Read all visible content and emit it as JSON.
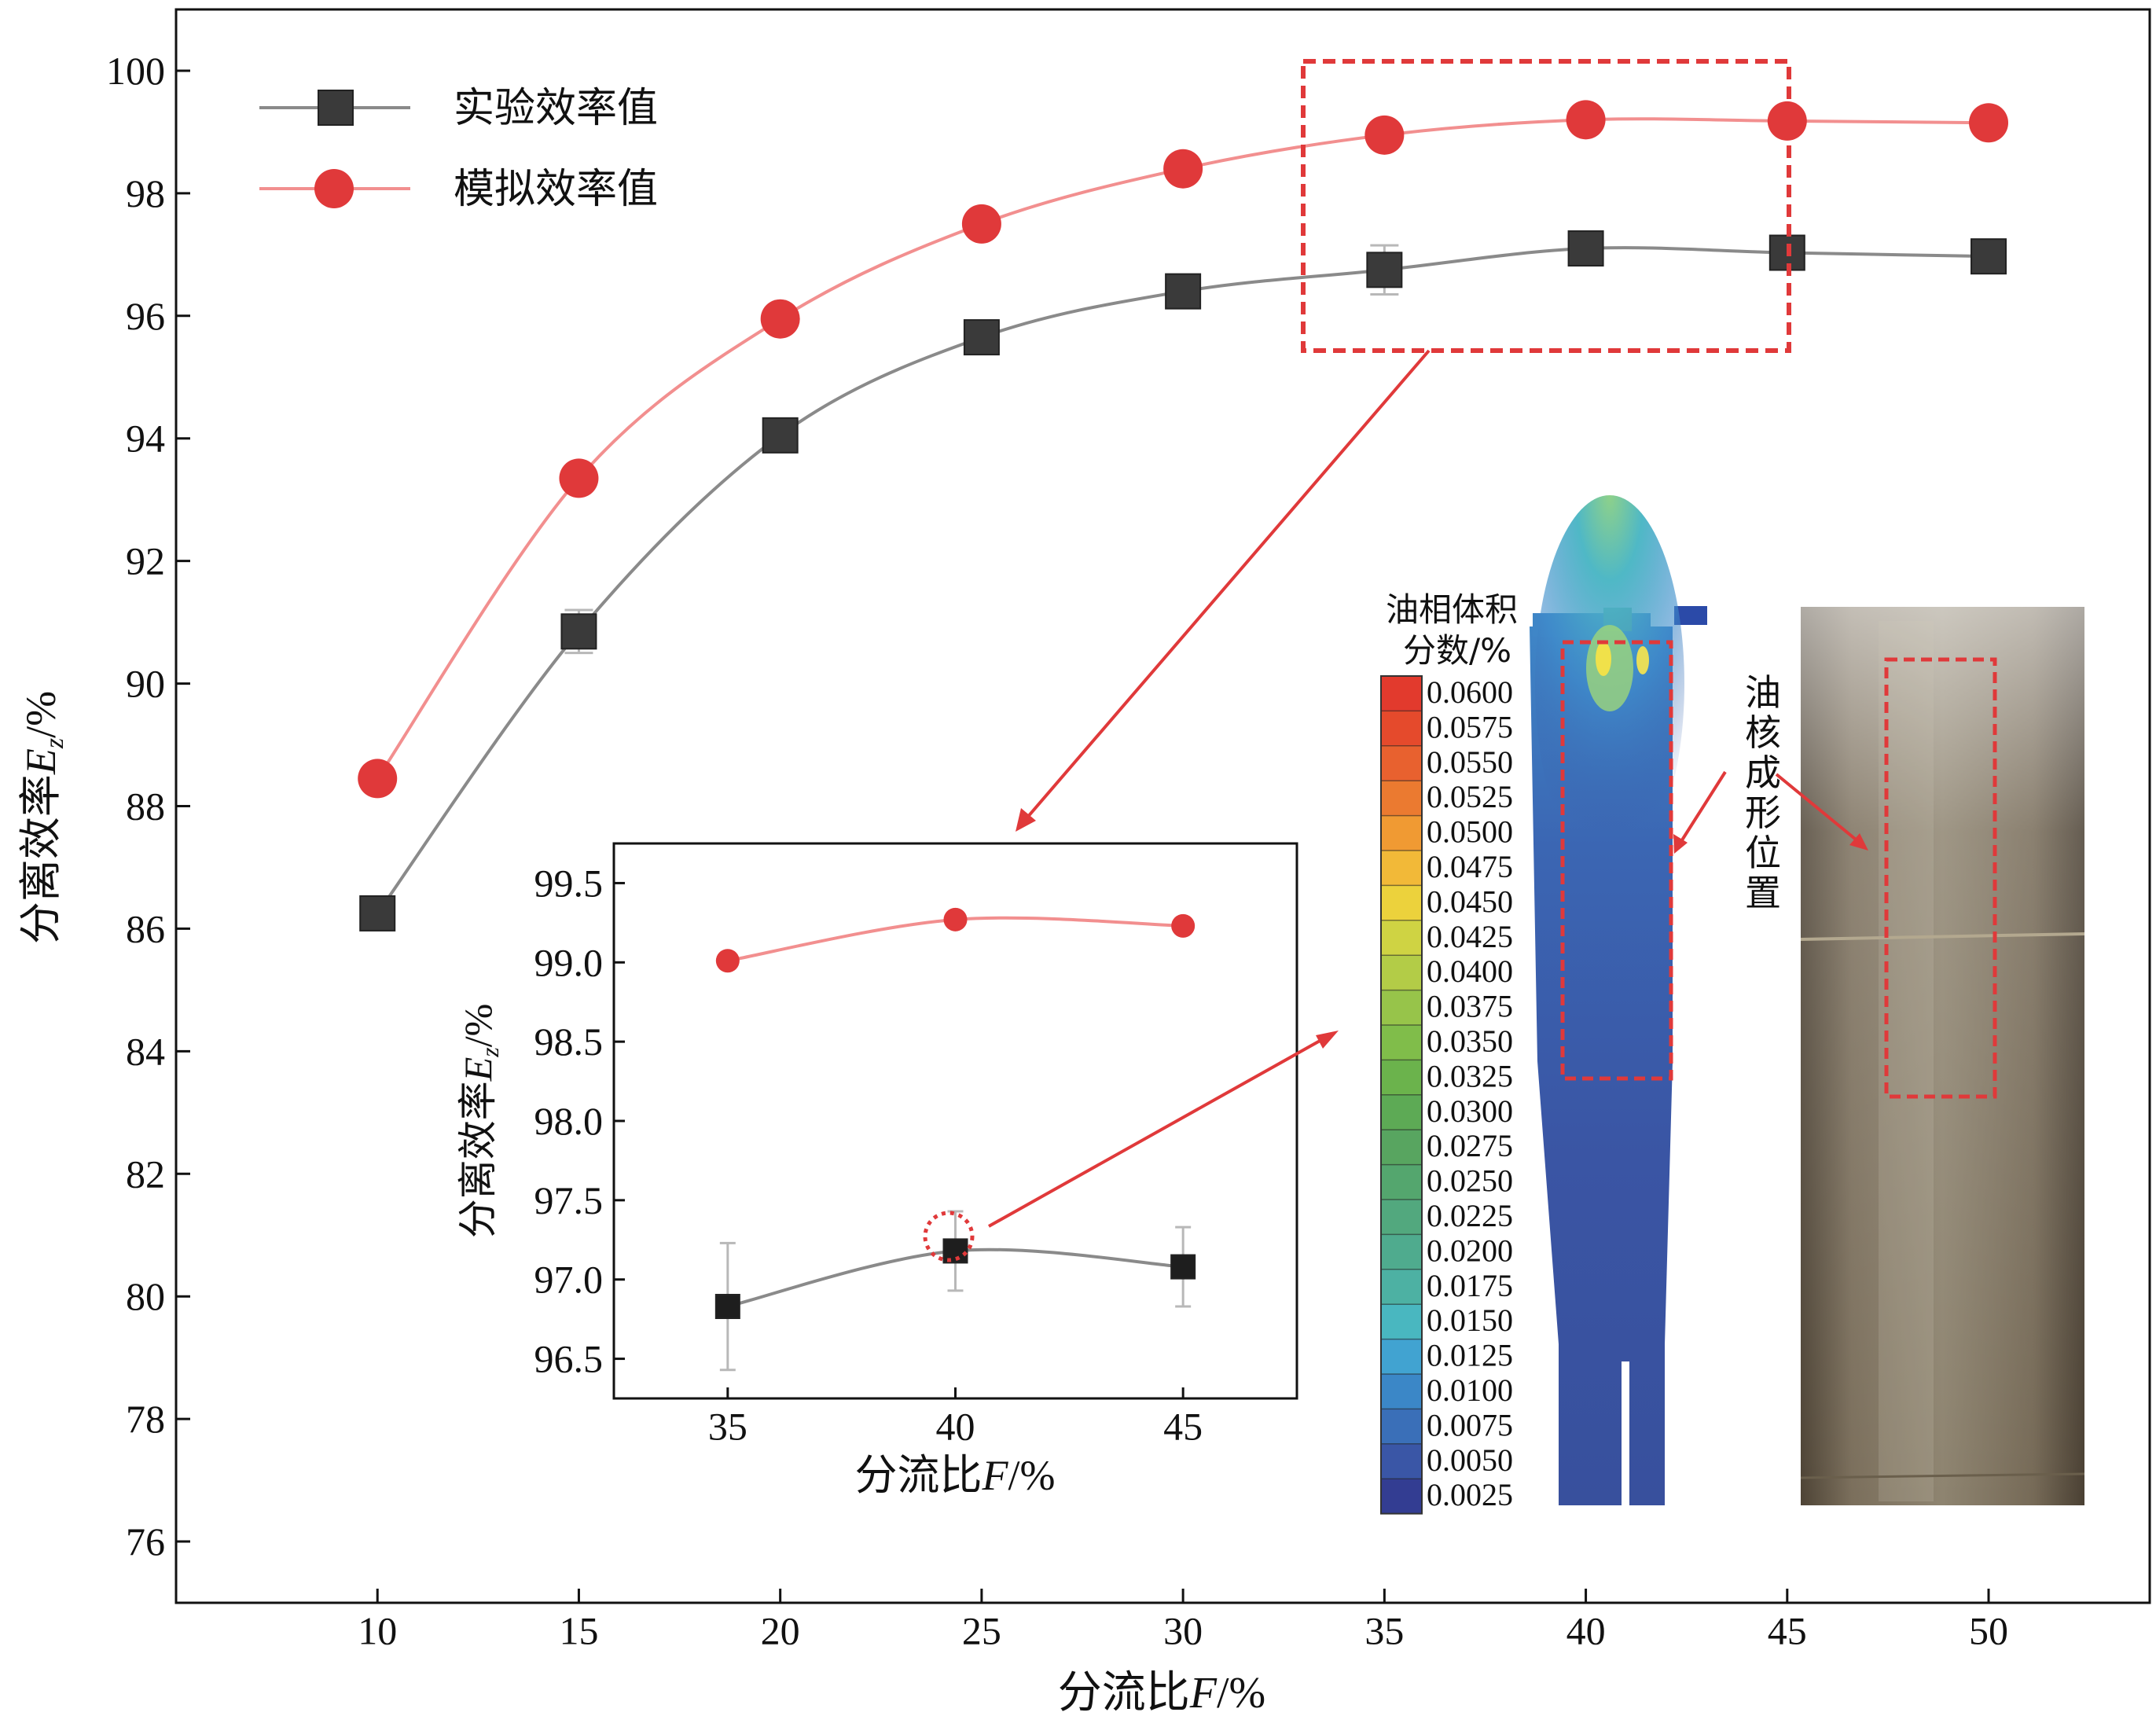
{
  "main_chart": {
    "ylabel_text": "分离效率",
    "ylabel_sym": "E",
    "ylabel_sub": "z",
    "ylabel_unit": "/%",
    "xlabel_text": "分流比",
    "xlabel_sym": "F",
    "xlabel_unit": "/%",
    "legend": [
      {
        "label": "实验效率值",
        "color": "#4a4a4a",
        "marker": "square"
      },
      {
        "label": "模拟效率值",
        "color": "#e0393a",
        "marker": "circle"
      }
    ]
  },
  "inset_chart": {
    "ylabel_text": "分离效率",
    "ylabel_sym": "E",
    "ylabel_sub": "z",
    "ylabel_unit": "/%",
    "xlabel_text": "分流比",
    "xlabel_sym": "F",
    "xlabel_unit": "/%"
  },
  "colorbar": {
    "title_line1": "油相体积",
    "title_line2": "分数/%",
    "levels": [
      "0.0600",
      "0.0575",
      "0.0550",
      "0.0525",
      "0.0500",
      "0.0475",
      "0.0450",
      "0.0425",
      "0.0400",
      "0.0375",
      "0.0350",
      "0.0325",
      "0.0300",
      "0.0275",
      "0.0250",
      "0.0225",
      "0.0200",
      "0.0175",
      "0.0150",
      "0.0125",
      "0.0100",
      "0.0075",
      "0.0050",
      "0.0025"
    ],
    "colors": [
      "#e23a2d",
      "#e54a2c",
      "#e8612f",
      "#eb7a30",
      "#f09a33",
      "#f2b938",
      "#ecd23c",
      "#cfd343",
      "#b3cc47",
      "#97c44a",
      "#80bd4a",
      "#6bb34c",
      "#5daa55",
      "#58a560",
      "#54a66e",
      "#52a87e",
      "#4fab8e",
      "#4db1a3",
      "#49b7c0",
      "#41a3d1",
      "#3b87c7",
      "#3a6fb8",
      "#3a56a6",
      "#333d92"
    ]
  },
  "annotation": {
    "oil_core_label": [
      "油",
      "核",
      "成",
      "形",
      "位",
      "置"
    ]
  },
  "chart_data": [
    {
      "type": "line",
      "x": [
        10,
        15,
        20,
        25,
        30,
        35,
        40,
        45,
        50
      ],
      "xticks": [
        10,
        15,
        20,
        25,
        30,
        35,
        40,
        45,
        50
      ],
      "yticks": [
        76,
        78,
        80,
        82,
        84,
        86,
        88,
        90,
        92,
        94,
        96,
        98,
        100
      ],
      "xlim": [
        5,
        54
      ],
      "ylim": [
        75,
        101
      ],
      "series": [
        {
          "name": "实验效率值",
          "values": [
            86.25,
            90.85,
            94.05,
            95.65,
            96.4,
            96.75,
            97.1,
            97.03,
            96.97
          ],
          "error": [
            0.1,
            0.35,
            0.15,
            0.1,
            0.1,
            0.4,
            0.1,
            0.1,
            0.1
          ]
        },
        {
          "name": "模拟效率值",
          "values": [
            88.45,
            93.35,
            95.95,
            97.5,
            98.4,
            98.95,
            99.2,
            99.18,
            99.15
          ]
        }
      ],
      "xlabel": "分流比F/%",
      "ylabel": "分离效率E_z/%",
      "grid": false,
      "legend": "top-left"
    },
    {
      "type": "line",
      "x": [
        35,
        40,
        45
      ],
      "xticks": [
        35,
        40,
        45
      ],
      "yticks": [
        96.5,
        97.0,
        97.5,
        98.0,
        98.5,
        99.0,
        99.5
      ],
      "xlim": [
        32.5,
        47.5
      ],
      "ylim": [
        96.25,
        99.75
      ],
      "series": [
        {
          "name": "实验效率值",
          "values": [
            96.83,
            97.18,
            97.08
          ],
          "error": [
            0.4,
            0.25,
            0.25
          ]
        },
        {
          "name": "模拟效率值",
          "values": [
            99.01,
            99.27,
            99.23
          ]
        }
      ],
      "xlabel": "分流比F/%",
      "ylabel": "分离效率E_z/%",
      "grid": false,
      "legend": "none"
    }
  ]
}
